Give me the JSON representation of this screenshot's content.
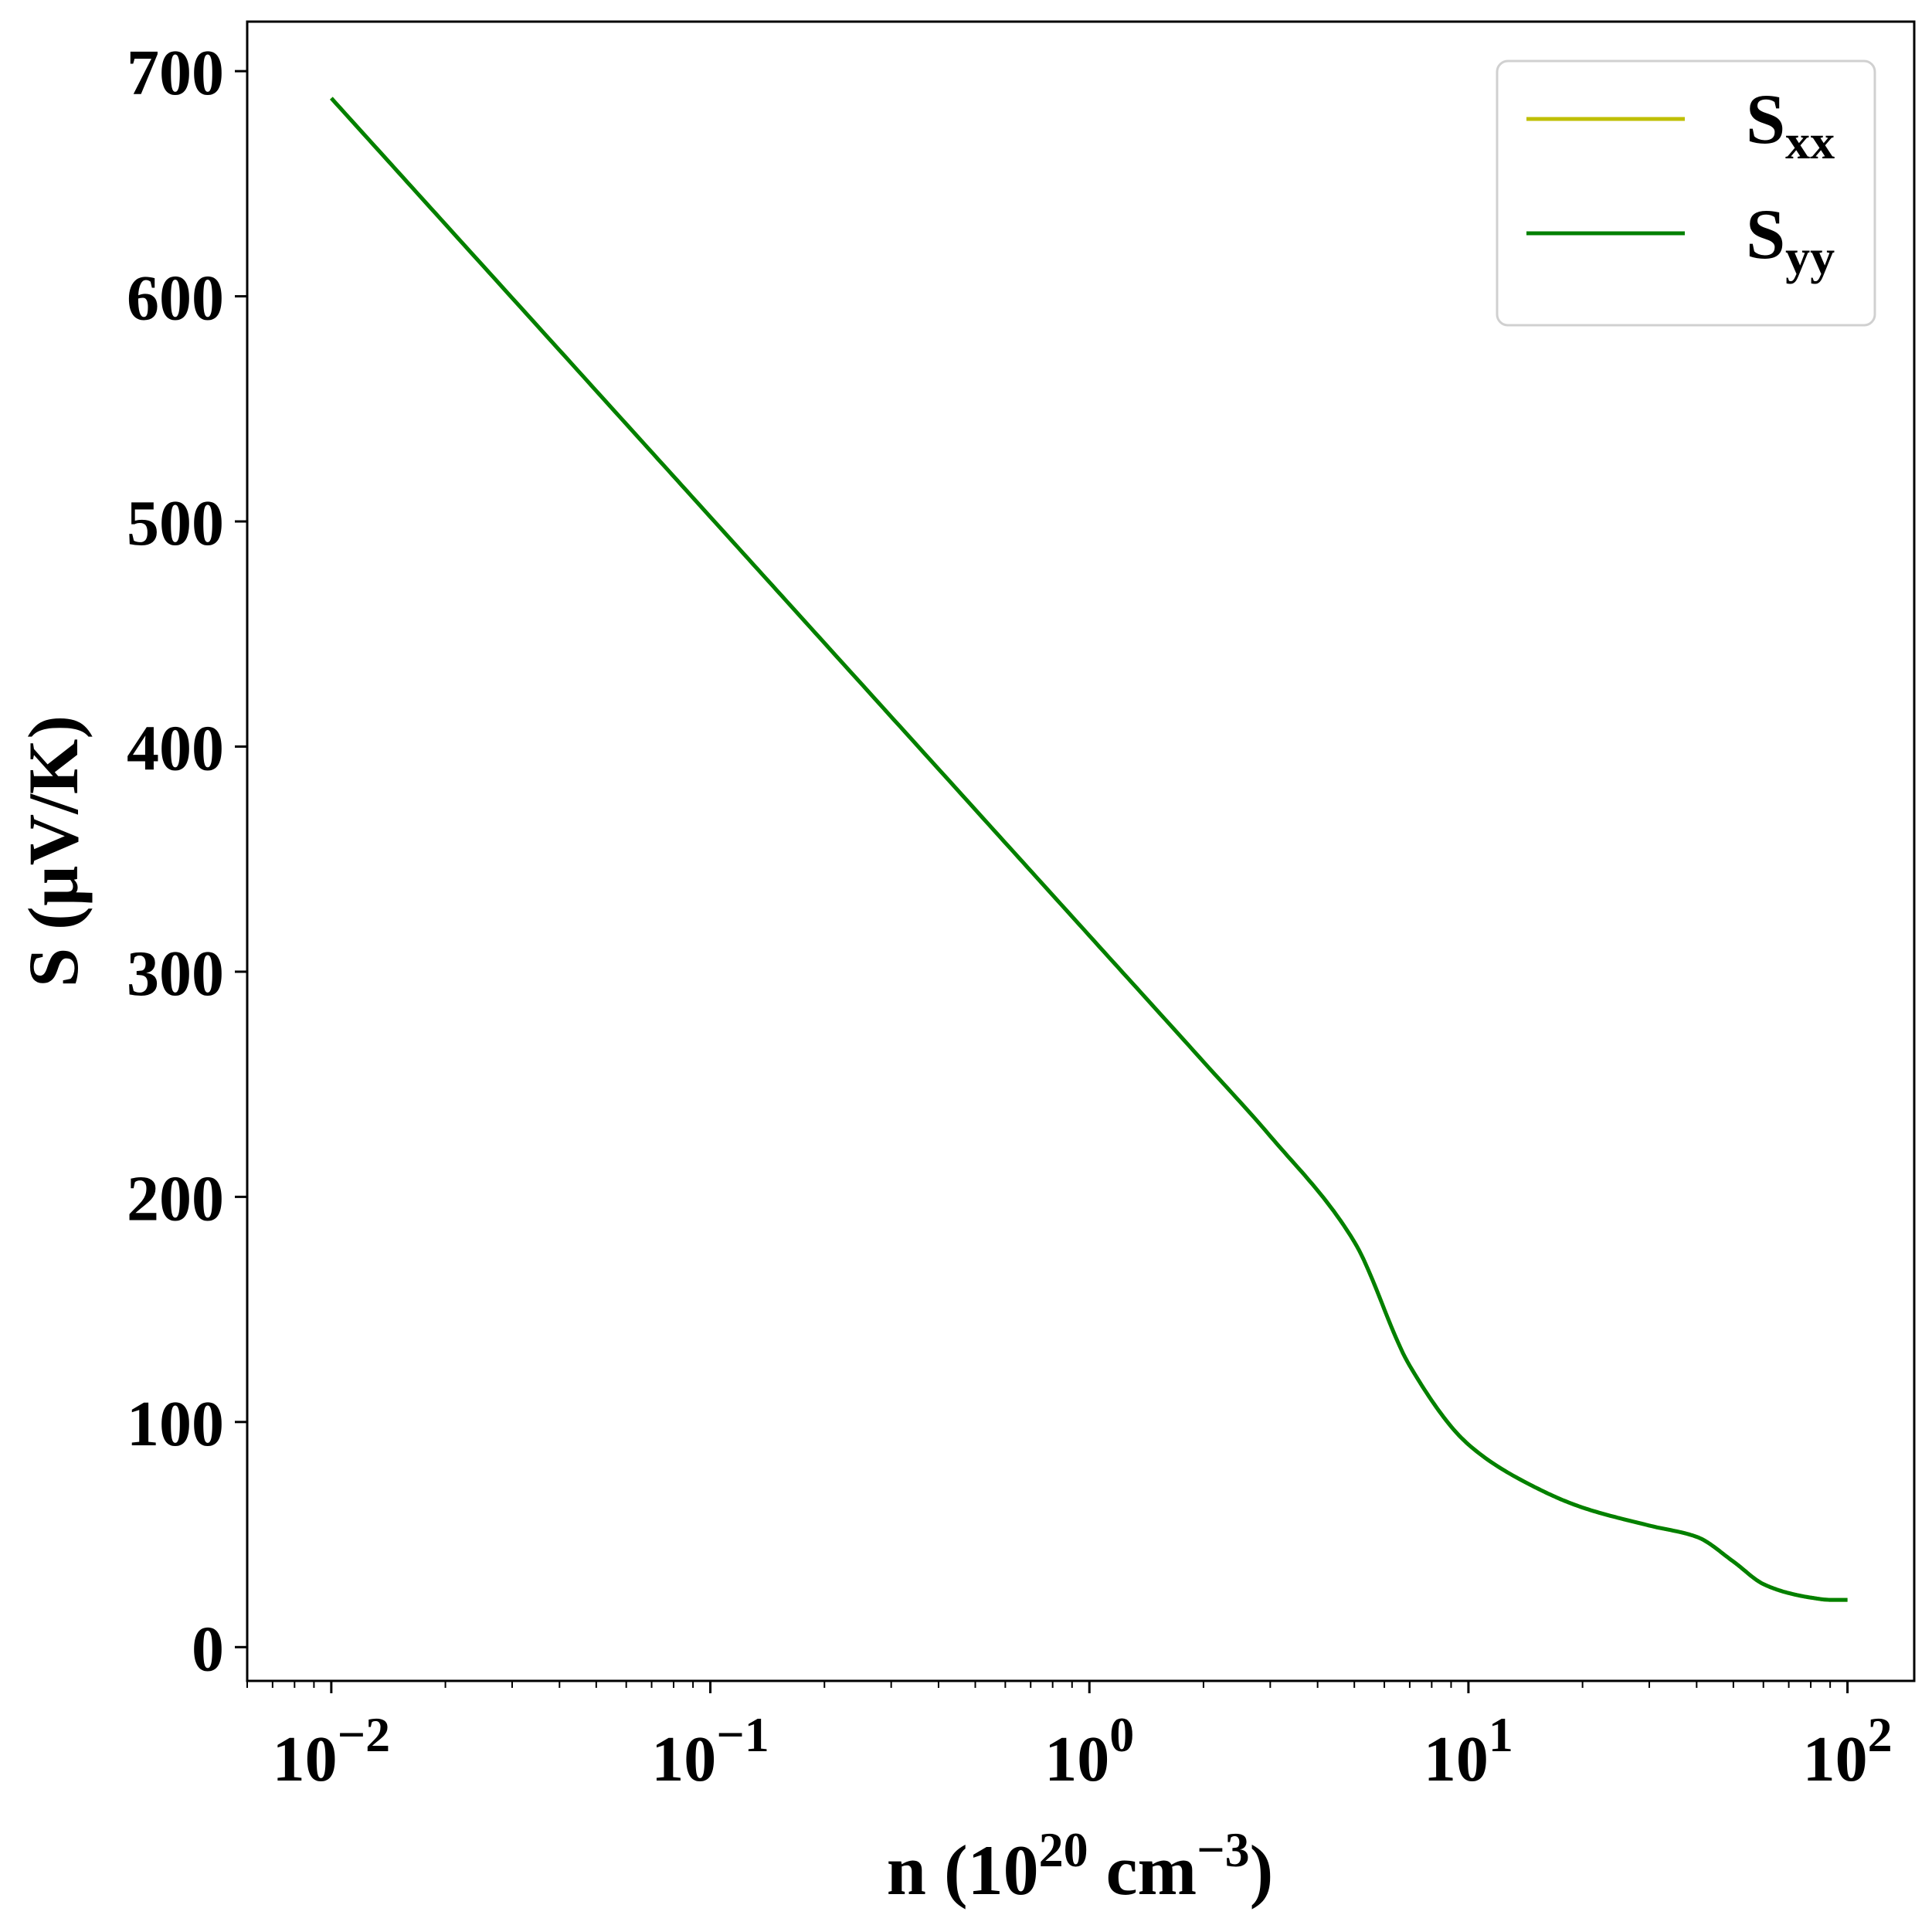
{
  "chart_data": {
    "type": "line",
    "xscale": "log",
    "xlim": [
      0.006,
      150
    ],
    "ylim": [
      -15,
      722
    ],
    "grid": false,
    "legend_position": "upper-right",
    "xticks": [
      {
        "value": 0.01,
        "base": "10",
        "exp": "−2"
      },
      {
        "value": 0.1,
        "base": "10",
        "exp": "−1"
      },
      {
        "value": 1,
        "base": "10",
        "exp": "0"
      },
      {
        "value": 10,
        "base": "10",
        "exp": "1"
      },
      {
        "value": 100,
        "base": "10",
        "exp": "2"
      }
    ],
    "yticks": [
      0,
      100,
      200,
      300,
      400,
      500,
      600,
      700
    ],
    "xlabel": {
      "pre": "n (10",
      "sup1": "20",
      "mid": " cm",
      "sup2": "−3",
      "post": ")"
    },
    "ylabel": "S (µV/K)",
    "series": [
      {
        "name": {
          "main": "S",
          "sub": "xx"
        },
        "color": "#bfbf00",
        "x": [
          0.01,
          0.02,
          0.05,
          0.1,
          0.2,
          0.5,
          1,
          2,
          3,
          5,
          7,
          10,
          15,
          20,
          30,
          40,
          50,
          60,
          70,
          80,
          90,
          100
        ],
        "y": [
          688,
          632,
          558,
          502,
          446,
          372,
          316,
          260,
          227,
          180,
          125,
          90,
          71,
          62,
          54,
          49,
          38,
          28,
          24,
          22,
          21,
          21
        ]
      },
      {
        "name": {
          "main": "S",
          "sub": "yy"
        },
        "color": "#008000",
        "x": [
          0.01,
          0.02,
          0.05,
          0.1,
          0.2,
          0.5,
          1,
          2,
          3,
          5,
          7,
          10,
          15,
          20,
          30,
          40,
          50,
          60,
          70,
          80,
          90,
          100
        ],
        "y": [
          688,
          632,
          558,
          502,
          446,
          372,
          316,
          260,
          227,
          180,
          125,
          90,
          71,
          62,
          54,
          49,
          38,
          28,
          24,
          22,
          21,
          21
        ]
      }
    ]
  }
}
